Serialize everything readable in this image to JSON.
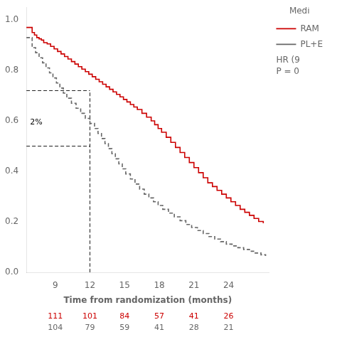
{
  "chart_data": {
    "type": "step",
    "xlabel": "Time from randomization (months)",
    "xlim": [
      6.5,
      27.5
    ],
    "ylim": [
      0.0,
      1.05
    ],
    "xticks": [
      9,
      12,
      15,
      18,
      21,
      24
    ],
    "yticks": [
      {
        "value": 0.0,
        "label": "0.0"
      },
      0.2,
      0.4,
      0.6,
      0.8,
      {
        "value": 1.0,
        "label": "1.0"
      }
    ],
    "grid": false,
    "legend": "right",
    "legend_title": "Medi",
    "legend_notes": [
      "HR (9",
      "P = 0"
    ],
    "series": [
      {
        "name": "RAM",
        "color": "#cc0000",
        "line_style": "solid",
        "x": [
          6.5,
          7.0,
          7.2,
          7.4,
          7.6,
          7.8,
          8.0,
          8.3,
          8.6,
          8.9,
          9.2,
          9.5,
          9.8,
          10.1,
          10.4,
          10.7,
          11.0,
          11.3,
          11.6,
          11.9,
          12.2,
          12.5,
          12.8,
          13.1,
          13.4,
          13.7,
          14.0,
          14.3,
          14.6,
          14.9,
          15.2,
          15.5,
          15.8,
          16.1,
          16.5,
          16.9,
          17.3,
          17.6,
          17.9,
          18.2,
          18.6,
          19.0,
          19.4,
          19.8,
          20.2,
          20.6,
          21.0,
          21.4,
          21.8,
          22.2,
          22.6,
          23.0,
          23.4,
          23.8,
          24.2,
          24.6,
          25.0,
          25.4,
          25.8,
          26.2,
          26.6,
          27.0
        ],
        "values": [
          0.97,
          0.95,
          0.94,
          0.93,
          0.925,
          0.92,
          0.91,
          0.905,
          0.895,
          0.885,
          0.875,
          0.865,
          0.855,
          0.845,
          0.835,
          0.825,
          0.815,
          0.805,
          0.795,
          0.785,
          0.775,
          0.765,
          0.755,
          0.745,
          0.735,
          0.725,
          0.715,
          0.705,
          0.695,
          0.685,
          0.675,
          0.665,
          0.655,
          0.645,
          0.63,
          0.615,
          0.6,
          0.585,
          0.57,
          0.555,
          0.535,
          0.515,
          0.495,
          0.475,
          0.455,
          0.435,
          0.415,
          0.395,
          0.375,
          0.355,
          0.34,
          0.325,
          0.31,
          0.295,
          0.28,
          0.265,
          0.25,
          0.238,
          0.226,
          0.214,
          0.202,
          0.195
        ],
        "at_risk": [
          111,
          101,
          84,
          57,
          41,
          26
        ]
      },
      {
        "name": "PL+E",
        "color": "#666666",
        "line_style": "dashed",
        "x": [
          6.5,
          7.0,
          7.3,
          7.6,
          7.9,
          8.2,
          8.5,
          8.8,
          9.1,
          9.4,
          9.7,
          10.0,
          10.4,
          10.8,
          11.2,
          11.6,
          12.0,
          12.4,
          12.7,
          13.0,
          13.3,
          13.6,
          13.9,
          14.2,
          14.5,
          14.8,
          15.1,
          15.5,
          15.9,
          16.3,
          16.7,
          17.1,
          17.5,
          17.9,
          18.3,
          18.8,
          19.3,
          19.8,
          20.3,
          20.8,
          21.3,
          21.8,
          22.3,
          22.8,
          23.3,
          23.8,
          24.3,
          24.8,
          25.3,
          25.8,
          26.3,
          26.8,
          27.2
        ],
        "values": [
          0.93,
          0.89,
          0.87,
          0.85,
          0.83,
          0.81,
          0.79,
          0.77,
          0.75,
          0.73,
          0.71,
          0.69,
          0.67,
          0.65,
          0.63,
          0.61,
          0.59,
          0.57,
          0.55,
          0.53,
          0.51,
          0.49,
          0.47,
          0.45,
          0.43,
          0.41,
          0.39,
          0.37,
          0.35,
          0.33,
          0.31,
          0.295,
          0.28,
          0.265,
          0.25,
          0.235,
          0.22,
          0.205,
          0.19,
          0.178,
          0.166,
          0.154,
          0.142,
          0.132,
          0.122,
          0.112,
          0.105,
          0.098,
          0.091,
          0.084,
          0.077,
          0.07,
          0.065
        ],
        "at_risk": [
          104,
          79,
          59,
          41,
          28,
          21
        ]
      }
    ],
    "at_risk_x": [
      9,
      12,
      15,
      18,
      21,
      24
    ],
    "reference_lines": [
      {
        "color": "#000000",
        "line_style": "dashed",
        "x": [
          6.5,
          12
        ],
        "y": [
          0.72,
          0.72
        ]
      },
      {
        "color": "#000000",
        "line_style": "dashed",
        "x": [
          6.5,
          12
        ],
        "y": [
          0.5,
          0.5
        ]
      },
      {
        "color": "#000000",
        "line_style": "dashed",
        "x": [
          12,
          12
        ],
        "y": [
          0,
          0.72
        ]
      }
    ],
    "annotations": [
      {
        "text": "2%",
        "x": 6.7,
        "y": 0.595
      }
    ]
  }
}
